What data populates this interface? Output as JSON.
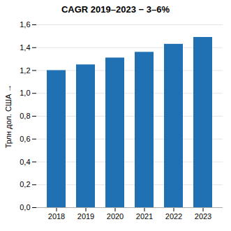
{
  "chart_data": {
    "type": "bar",
    "title": "CAGR 2019–2023 − 3–6%",
    "ylabel": "Трлн дол. США",
    "categories": [
      "2018",
      "2019",
      "2020",
      "2021",
      "2022",
      "2023"
    ],
    "values": [
      1.2,
      1.25,
      1.31,
      1.36,
      1.43,
      1.49
    ],
    "color": "#2070b4",
    "ylim": [
      0,
      1.6
    ],
    "yticks": [
      {
        "value": 0.0,
        "label": "0,0"
      },
      {
        "value": 0.2,
        "label": "0,2"
      },
      {
        "value": 0.4,
        "label": "0,4"
      },
      {
        "value": 0.6,
        "label": "0,6"
      },
      {
        "value": 0.8,
        "label": "0,8"
      },
      {
        "value": 1.0,
        "label": "1,0"
      },
      {
        "value": 1.2,
        "label": "1,2"
      },
      {
        "value": 1.4,
        "label": "1,4"
      },
      {
        "value": 1.6,
        "label": "1,6"
      }
    ],
    "grid": true
  }
}
